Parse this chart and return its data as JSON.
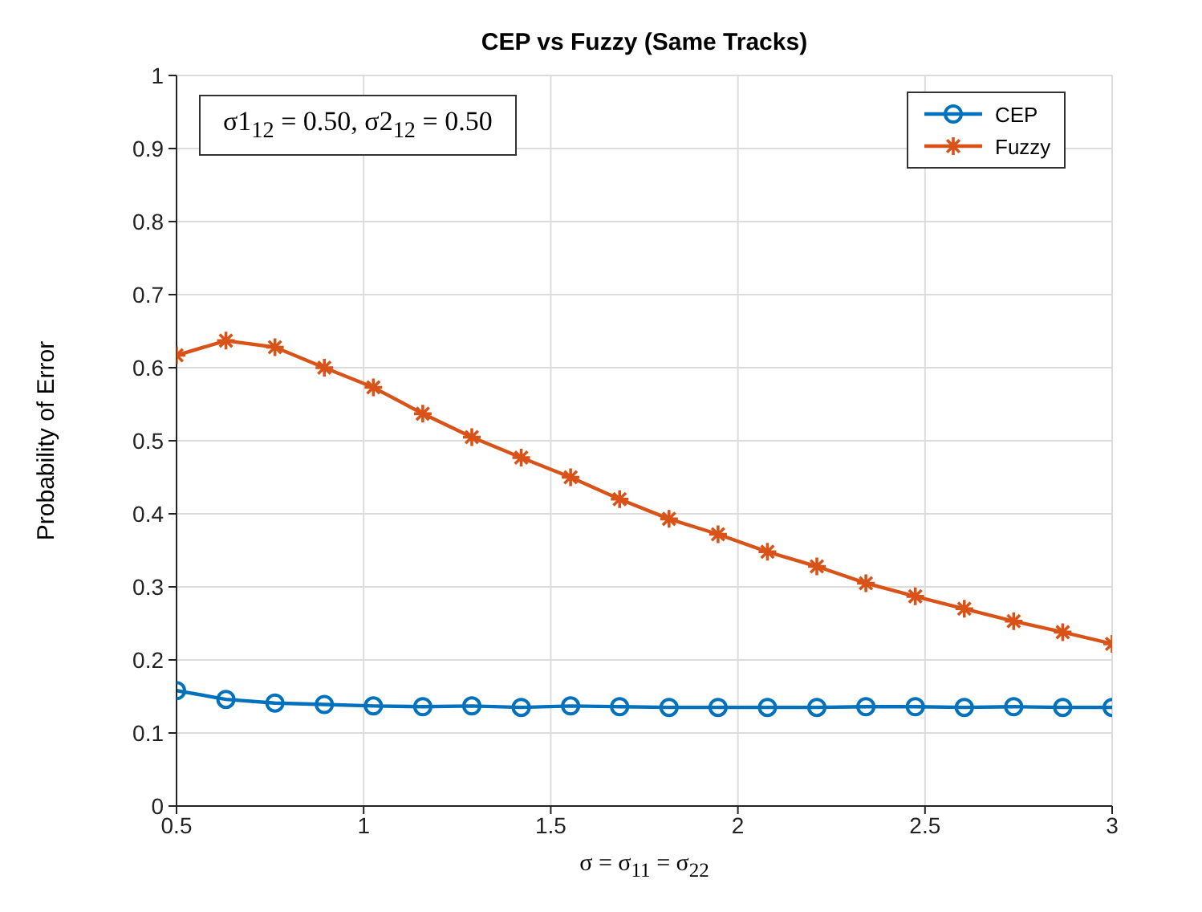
{
  "chart_data": {
    "type": "line",
    "title": "CEP vs Fuzzy (Same Tracks)",
    "xlabel": "σ = σ$_{11}$ = σ$_{22}$",
    "ylabel": "Probability of Error",
    "annotations": [
      "σ1$_{12}$ = 0.50, σ2$_{12}$ = 0.50"
    ],
    "x": [
      0.5,
      0.632,
      0.763,
      0.895,
      1.026,
      1.158,
      1.289,
      1.421,
      1.553,
      1.684,
      1.816,
      1.947,
      2.079,
      2.211,
      2.342,
      2.474,
      2.605,
      2.737,
      2.868,
      3.0
    ],
    "series": [
      {
        "name": "CEP",
        "color": "#0072bd",
        "marker": "circle",
        "values": [
          0.158,
          0.146,
          0.141,
          0.139,
          0.137,
          0.136,
          0.137,
          0.135,
          0.137,
          0.136,
          0.135,
          0.135,
          0.135,
          0.135,
          0.136,
          0.136,
          0.135,
          0.136,
          0.135,
          0.135
        ]
      },
      {
        "name": "Fuzzy",
        "color": "#d95319",
        "marker": "cross",
        "values": [
          0.617,
          0.637,
          0.628,
          0.6,
          0.573,
          0.537,
          0.505,
          0.477,
          0.45,
          0.42,
          0.393,
          0.372,
          0.348,
          0.328,
          0.305,
          0.287,
          0.27,
          0.253,
          0.238,
          0.222
        ]
      }
    ],
    "xlim": [
      0.5,
      3
    ],
    "xticks": [
      0.5,
      1,
      1.5,
      2,
      2.5,
      3
    ],
    "ylim": [
      0,
      1
    ],
    "yticks": [
      0,
      0.1,
      0.2,
      0.3,
      0.4,
      0.5,
      0.6,
      0.7,
      0.8,
      0.9,
      1
    ],
    "grid": true,
    "legend": "top right",
    "line_style": "solid"
  }
}
